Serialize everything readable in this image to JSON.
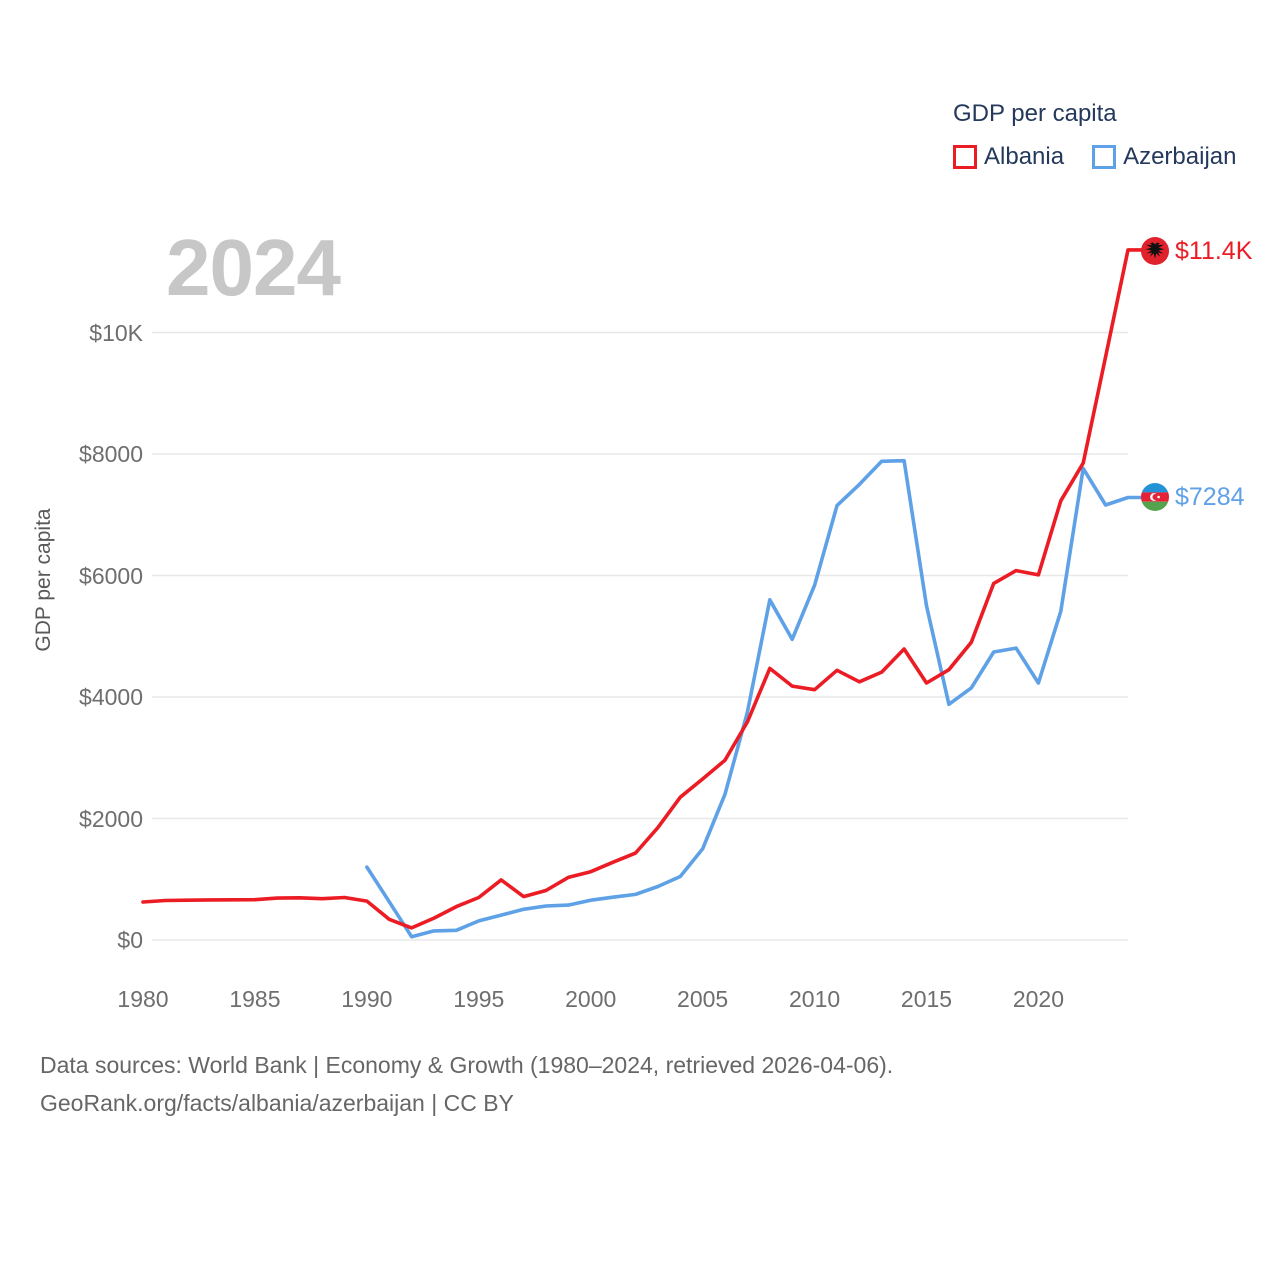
{
  "watermark_year": "2024",
  "legend": {
    "title": "GDP per capita",
    "items": [
      {
        "label": "Albania",
        "color": "#ec1c24"
      },
      {
        "label": "Azerbaijan",
        "color": "#5ea1e6"
      }
    ]
  },
  "y_axis_title": "GDP per capita",
  "end_labels": [
    {
      "series": "Albania",
      "text": "$11.4K",
      "color": "#ec1c24"
    },
    {
      "series": "Azerbaijan",
      "text": "$7284",
      "color": "#5ea1e6"
    }
  ],
  "footer": {
    "line1": "Data sources: World Bank | Economy & Growth (1980–2024, retrieved 2026-04-06).",
    "line2": "GeoRank.org/facts/albania/azerbaijan | CC BY"
  },
  "chart_data": {
    "type": "line",
    "title": "GDP per capita",
    "xlabel": "",
    "ylabel": "GDP per capita",
    "grid": "horizontal",
    "legend_position": "top-right",
    "xlim": [
      1980,
      2024
    ],
    "ylim": [
      0,
      11800
    ],
    "x": [
      1980,
      1981,
      1982,
      1983,
      1984,
      1985,
      1986,
      1987,
      1988,
      1989,
      1990,
      1991,
      1992,
      1993,
      1994,
      1995,
      1996,
      1997,
      1998,
      1999,
      2000,
      2001,
      2002,
      2003,
      2004,
      2005,
      2006,
      2007,
      2008,
      2009,
      2010,
      2011,
      2012,
      2013,
      2014,
      2015,
      2016,
      2017,
      2018,
      2019,
      2020,
      2021,
      2022,
      2023,
      2024
    ],
    "series": [
      {
        "name": "Albania",
        "color": "#ec1c24",
        "values": [
          625,
          650,
          655,
          660,
          662,
          663,
          690,
          695,
          680,
          700,
          640,
          340,
          200,
          360,
          550,
          700,
          990,
          715,
          815,
          1030,
          1125,
          1280,
          1430,
          1850,
          2350,
          2650,
          2960,
          3590,
          4470,
          4180,
          4120,
          4440,
          4250,
          4410,
          4790,
          4230,
          4450,
          4900,
          5870,
          6080,
          6010,
          7230,
          7850,
          9600,
          11360
        ]
      },
      {
        "name": "Azerbaijan",
        "color": "#5ea1e6",
        "values": [
          null,
          null,
          null,
          null,
          null,
          null,
          null,
          null,
          null,
          null,
          1200,
          630,
          55,
          150,
          160,
          315,
          410,
          505,
          560,
          575,
          655,
          705,
          750,
          880,
          1045,
          1500,
          2400,
          3750,
          5600,
          4950,
          5840,
          7150,
          7500,
          7880,
          7890,
          5500,
          3880,
          4150,
          4740,
          4805,
          4230,
          5410,
          7763,
          7160,
          7284
        ]
      }
    ],
    "x_ticks": [
      {
        "label": "1980",
        "value": 1980
      },
      {
        "label": "1985",
        "value": 1985
      },
      {
        "label": "1990",
        "value": 1990
      },
      {
        "label": "1995",
        "value": 1995
      },
      {
        "label": "2000",
        "value": 2000
      },
      {
        "label": "2005",
        "value": 2005
      },
      {
        "label": "2010",
        "value": 2010
      },
      {
        "label": "2015",
        "value": 2015
      },
      {
        "label": "2020",
        "value": 2020
      }
    ],
    "y_ticks": [
      {
        "label": "$0",
        "value": 0
      },
      {
        "label": "$2000",
        "value": 2000
      },
      {
        "label": "$4000",
        "value": 4000
      },
      {
        "label": "$6000",
        "value": 6000
      },
      {
        "label": "$8000",
        "value": 8000
      },
      {
        "label": "$10K",
        "value": 10000
      }
    ]
  }
}
